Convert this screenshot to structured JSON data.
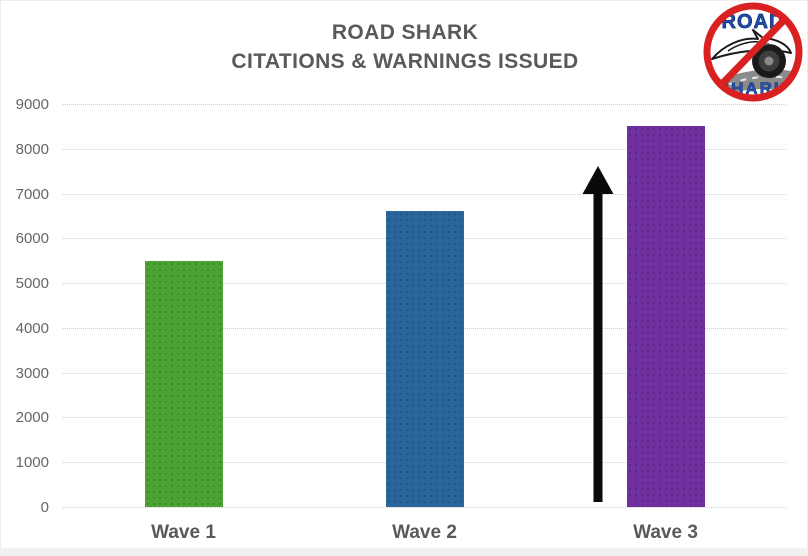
{
  "title": {
    "line1": "ROAD SHARK",
    "line2": "CITATIONS & WARNINGS ISSUED"
  },
  "logo": {
    "top_text": "ROAD",
    "bottom_text": "SHARK",
    "ring_color": "#d92121",
    "text_color": "#1e4db0",
    "text_outline_color": "#12306f",
    "road_color": "#8b8b8b",
    "tire_color": "#1a1a1a",
    "meaning": "no-road-shark prohibition sign"
  },
  "chart_data": {
    "type": "bar",
    "title": "ROAD SHARK CITATIONS & WARNINGS ISSUED",
    "categories": [
      "Wave 1",
      "Wave 2",
      "Wave 3"
    ],
    "values": [
      5500,
      6600,
      8500
    ],
    "bar_colors": [
      "#4aa333",
      "#2a669c",
      "#7030a0"
    ],
    "xlabel": "",
    "ylabel": "",
    "ylim": [
      0,
      9000
    ],
    "yticks": [
      0,
      1000,
      2000,
      3000,
      4000,
      5000,
      6000,
      7000,
      8000,
      9000
    ],
    "grid": "horizontal dotted light-gray",
    "legend": "none",
    "annotation": "black upward arrow drawn from baseline to ~7400 just left of Wave 3 bar, indicating increase",
    "tick_label_color": "#666666",
    "category_label_color": "#595959"
  }
}
